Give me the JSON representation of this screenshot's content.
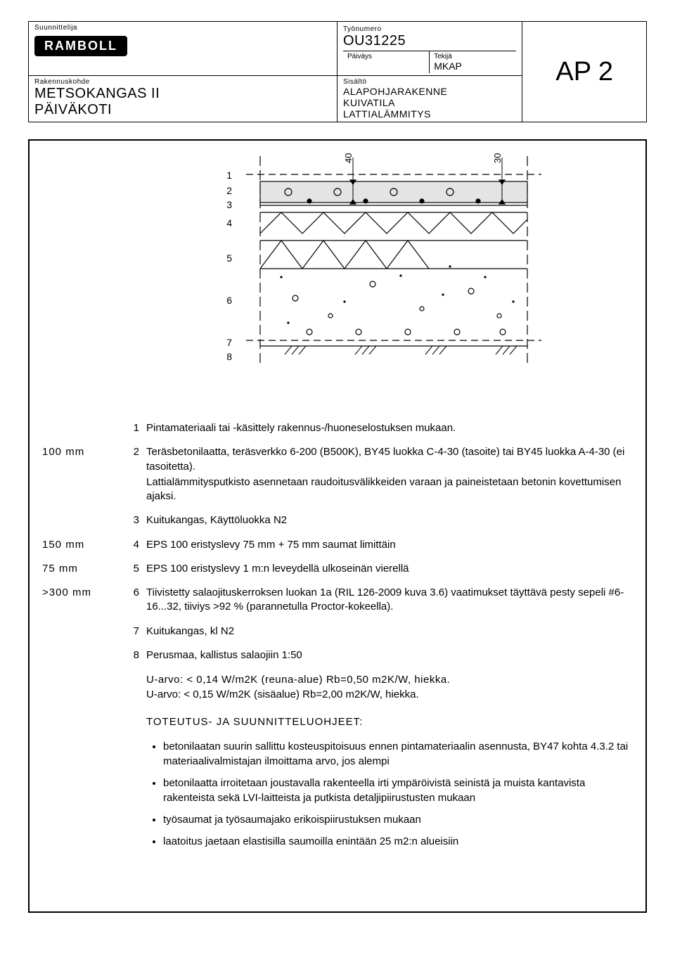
{
  "header": {
    "designer_label": "Suunnittelija",
    "logo_text": "RAMBOLL",
    "jobno_label": "Työnumero",
    "jobno": "OU31225",
    "date_label": "Päiväys",
    "date": "",
    "author_label": "Tekijä",
    "author": "MKAP",
    "sheet_code": "AP 2",
    "project_label": "Rakennuskohde",
    "project_line1": "METSOKANGAS II",
    "project_line2": "PÄIVÄKOTI",
    "content_label": "Sisältö",
    "content_line1": "ALAPOHJARAKENNE",
    "content_line2": "KUIVATILA",
    "content_line3": "LATTIALÄMMITYS"
  },
  "diagram": {
    "layer_numbers": [
      "1",
      "2",
      "3",
      "4",
      "5",
      "6",
      "7",
      "8"
    ],
    "dim_top_left": "40",
    "dim_top_right": "30",
    "colors": {
      "slab_fill": "#e4e4e4",
      "stroke": "#000000",
      "bg": "#ffffff"
    }
  },
  "layers": [
    {
      "dim": "",
      "n": "1",
      "text": "Pintamateriaali tai -käsittely rakennus-/huoneselostuksen mukaan."
    },
    {
      "dim": "100 mm",
      "n": "2",
      "text": "Teräsbetonilaatta, teräsverkko 6-200 (B500K), BY45 luokka C-4-30 (tasoite) tai BY45 luokka A-4-30 (ei tasoitetta).\nLattialämmitysputkisto asennetaan raudoitusvälikkeiden varaan ja paineistetaan betonin kovettumisen ajaksi."
    },
    {
      "dim": "",
      "n": "3",
      "text": "Kuitukangas, Käyttöluokka N2"
    },
    {
      "dim": "150 mm",
      "n": "4",
      "text": "EPS 100 eristyslevy 75 mm + 75 mm saumat limittäin"
    },
    {
      "dim": "75 mm",
      "n": "5",
      "text": "EPS 100 eristyslevy 1 m:n leveydellä ulkoseinän vierellä"
    },
    {
      "dim": ">300 mm",
      "n": "6",
      "text": "Tiivistetty salaojituskerroksen luokan 1a (RIL 126-2009 kuva 3.6) vaatimukset täyttävä pesty sepeli #6-16...32, tiiviys >92 % (parannetulla Proctor-kokeella)."
    },
    {
      "dim": "",
      "n": "7",
      "text": "Kuitukangas, kl N2"
    },
    {
      "dim": "",
      "n": "8",
      "text": "Perusmaa, kallistus salaojiin 1:50"
    }
  ],
  "uvalues": {
    "line1": "U-arvo: < 0,14 W/m2K (reuna-alue) Rb=0,50 m2K/W, hiekka.",
    "line2": "U-arvo: < 0,15 W/m2K (sisäalue) Rb=2,00 m2K/W, hiekka."
  },
  "notes_heading": "TOTEUTUS- JA SUUNNITTELUOHJEET:",
  "notes": [
    "betonilaatan suurin sallittu kosteuspitoisuus ennen pintamateriaalin asennusta, BY47 kohta 4.3.2 tai materiaalivalmistajan ilmoittama arvo, jos alempi",
    "betonilaatta irroitetaan joustavalla rakenteella irti ympäröivistä seinistä ja muista kantavista rakenteista sekä LVI-laitteista ja putkista detaljipiirustusten mukaan",
    "työsaumat ja työsaumajako erikoispiirustuksen mukaan",
    "laatoitus jaetaan elastisilla saumoilla enintään 25 m2:n alueisiin"
  ]
}
